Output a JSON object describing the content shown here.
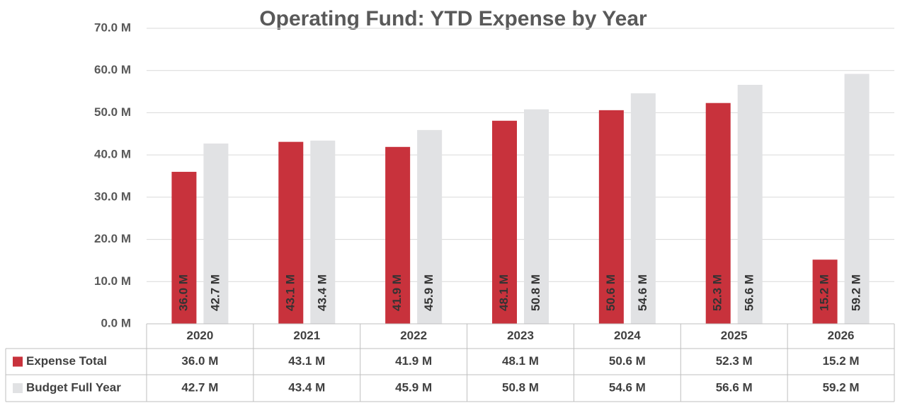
{
  "chart_data": {
    "type": "bar",
    "title": "Operating Fund: YTD Expense by Year",
    "categories": [
      "2020",
      "2021",
      "2022",
      "2023",
      "2024",
      "2025",
      "2026"
    ],
    "series": [
      {
        "name": "Expense Total",
        "color": "#c8323c",
        "values": [
          36.0,
          43.1,
          41.9,
          48.1,
          50.6,
          52.3,
          15.2
        ],
        "value_labels": [
          "36.0 M",
          "43.1 M",
          "41.9 M",
          "48.1 M",
          "50.6 M",
          "52.3 M",
          "15.2 M"
        ]
      },
      {
        "name": "Budget Full Year",
        "color": "#e1e2e4",
        "values": [
          42.7,
          43.4,
          45.9,
          50.8,
          54.6,
          56.6,
          59.2
        ],
        "value_labels": [
          "42.7 M",
          "43.4 M",
          "45.9 M",
          "50.8 M",
          "54.6 M",
          "56.6 M",
          "59.2 M"
        ]
      }
    ],
    "ylim": [
      0,
      70
    ],
    "yticks": [
      {
        "value": 0,
        "label": "0.0 M"
      },
      {
        "value": 10,
        "label": "10.0 M"
      },
      {
        "value": 20,
        "label": "20.0 M"
      },
      {
        "value": 30,
        "label": "30.0 M"
      },
      {
        "value": 40,
        "label": "40.0 M"
      },
      {
        "value": 50,
        "label": "50.0 M"
      },
      {
        "value": 60,
        "label": "60.0 M"
      },
      {
        "value": 70,
        "label": "70.0 M"
      }
    ],
    "grid": true
  }
}
